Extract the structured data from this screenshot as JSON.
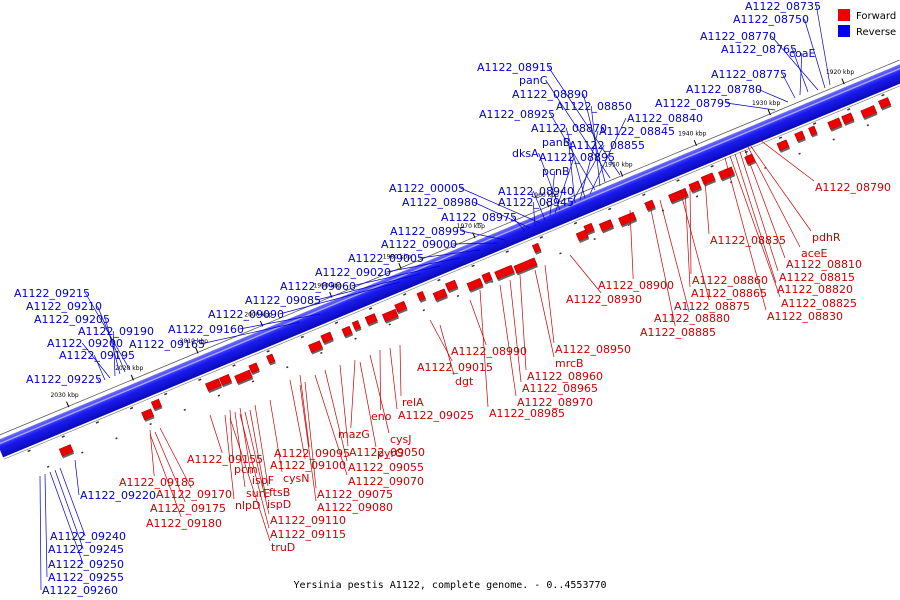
{
  "caption": "Yersinia pestis A1122, complete genome. - 0..4553770",
  "legend": [
    {
      "label": "Forward",
      "color": "#ee0000"
    },
    {
      "label": "Reverse",
      "color": "#0000ee"
    }
  ],
  "colors": {
    "forward": "#ee0000",
    "reverse": "#1a1aee",
    "forward_text": "#cc0000",
    "reverse_text": "#0000cc"
  },
  "ticks": [
    "1920 kbp",
    "1930 kbp",
    "1940 kbp",
    "1950 kbp",
    "1960 kbp",
    "1970 kbp",
    "1980 kbp",
    "1990 kbp",
    "2000 kbp",
    "2010 kbp",
    "2020 kbp",
    "2030 kbp"
  ],
  "reverse_labels": [
    "A1122_08735",
    "A1122_08750",
    "A1122_08770",
    "A1122_08765",
    "coaE",
    "A1122_08775",
    "A1122_08780",
    "A1122_08795",
    "A1122_08915",
    "panC",
    "A1122_08890",
    "A1122_08850",
    "A1122_08925",
    "A1122_08840",
    "A1122_08870",
    "A1122_08845",
    "panB",
    "A1122_08855",
    "dksA",
    "A1122_08895",
    "pcnB",
    "A1122_08940",
    "A1122_00005",
    "A1122_08945",
    "A1122_08980",
    "A1122_08975",
    "A1122_08995",
    "A1122_09000",
    "A1122_09005",
    "A1122_09020",
    "A1122_09060",
    "A1122_09085",
    "A1122_09090",
    "A1122_09160",
    "A1122_09165",
    "A1122_09215",
    "A1122_09210",
    "A1122_09205",
    "A1122_09190",
    "A1122_09200",
    "A1122_09195",
    "A1122_09225",
    "A1122_09220",
    "A1122_09240",
    "A1122_09245",
    "A1122_09250",
    "A1122_09255",
    "A1122_09260"
  ],
  "forward_labels": [
    "A1122_08790",
    "pdhR",
    "A1122_08835",
    "aceE",
    "A1122_08810",
    "A1122_08860",
    "A1122_08815",
    "A1122_08865",
    "A1122_08820",
    "A1122_08900",
    "A1122_08825",
    "A1122_08875",
    "A1122_08830",
    "A1122_08880",
    "A1122_08885",
    "A1122_08930",
    "A1122_08950",
    "A1122_08990",
    "mrcB",
    "A1122_08960",
    "A1122_09015",
    "A1122_08965",
    "dgt",
    "A1122_08970",
    "A1122_08985",
    "relA",
    "A1122_09025",
    "eno",
    "mazG",
    "cysJ",
    "pyrG",
    "A1122_09050",
    "A1122_09095",
    "A1122_09055",
    "A1122_09070",
    "A1122_09100",
    "A1122_09075",
    "A1122_09080",
    "A1122_09155",
    "pcm",
    "ispF",
    "cysN",
    "surE",
    "ftsB",
    "nlpD",
    "ispD",
    "A1122_09110",
    "A1122_09115",
    "truD",
    "A1122_09185",
    "A1122_09170",
    "A1122_09175",
    "A1122_09180"
  ]
}
